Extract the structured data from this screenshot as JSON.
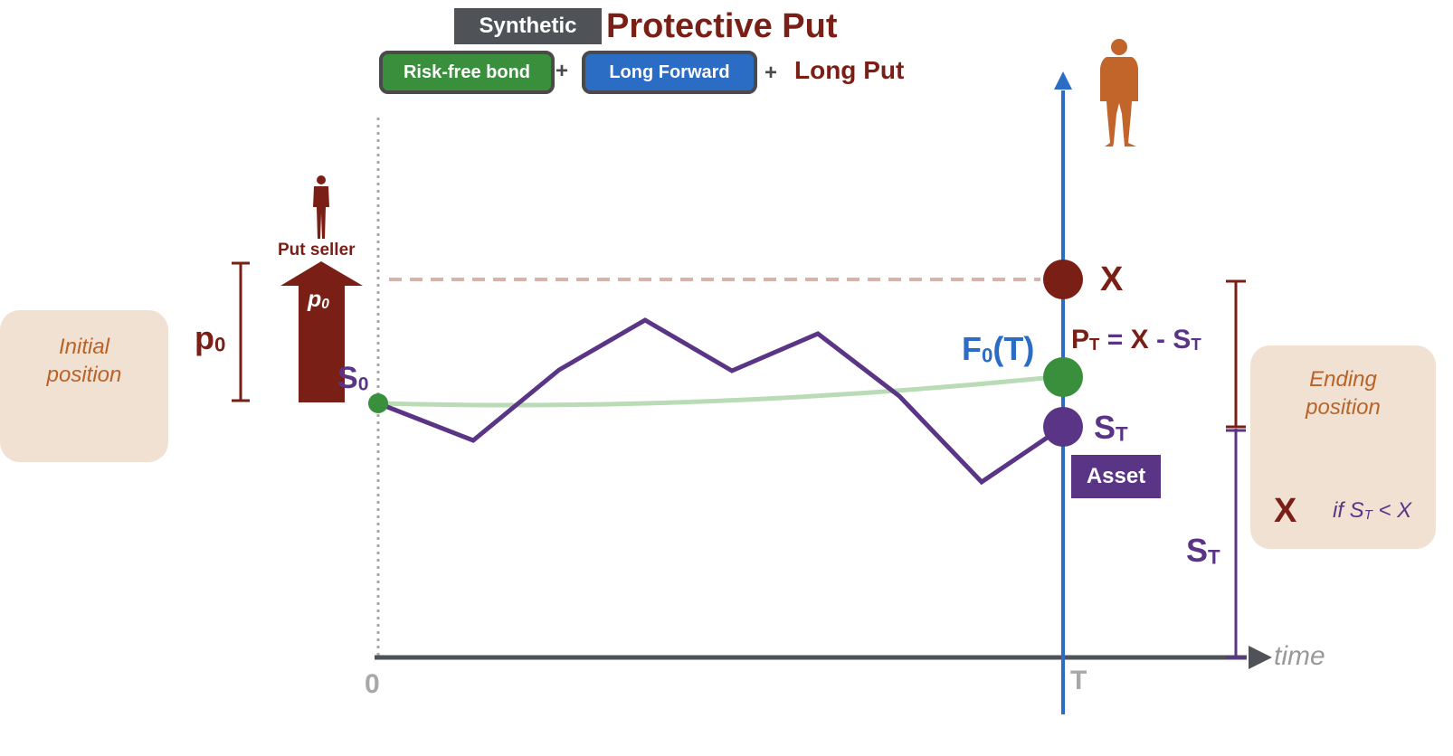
{
  "header": {
    "synthetic_tag": "Synthetic",
    "title": "Protective Put",
    "components": [
      "Risk-free bond",
      "Long Forward",
      "Long Put"
    ],
    "plus": "+"
  },
  "left": {
    "box_text_line1": "Initial",
    "box_text_line2": "position",
    "premium_label": "p",
    "premium_sub": "0",
    "put_seller_label": "Put seller",
    "arrow_label": "p",
    "arrow_sub": "0"
  },
  "axis": {
    "origin_label": "0",
    "maturity_label": "T",
    "time_label": "time"
  },
  "nodes": {
    "spot_label": "S",
    "spot_sub": "0",
    "strike_label": "X",
    "forward_label": "F",
    "forward_sub": "0",
    "forward_arg": "(T)",
    "terminal_label": "S",
    "terminal_sub": "T",
    "asset_label": "Asset"
  },
  "payoff": {
    "P": "P",
    "P_sub": "T",
    "eq": "=",
    "X": "X",
    "minus": "-",
    "S": "S",
    "S_sub": "T"
  },
  "right": {
    "box_text_line1": "Ending",
    "box_text_line2": "position",
    "side_S": "S",
    "side_S_sub": "T",
    "end_X": "X",
    "cond_if": "if",
    "cond_S": "S",
    "cond_S_sub": "T",
    "cond_rest": "< X"
  },
  "colors": {
    "maroon": "#7a1f16",
    "purple": "#5a3586",
    "blue": "#2b6cc4",
    "green": "#3a8f3c",
    "light_green": "#b9dcb6",
    "orange_person": "#c2652a",
    "box_fill": "#f0e1d3"
  },
  "icons": [
    "person-icon",
    "put-seller-icon",
    "up-arrow-icon"
  ]
}
